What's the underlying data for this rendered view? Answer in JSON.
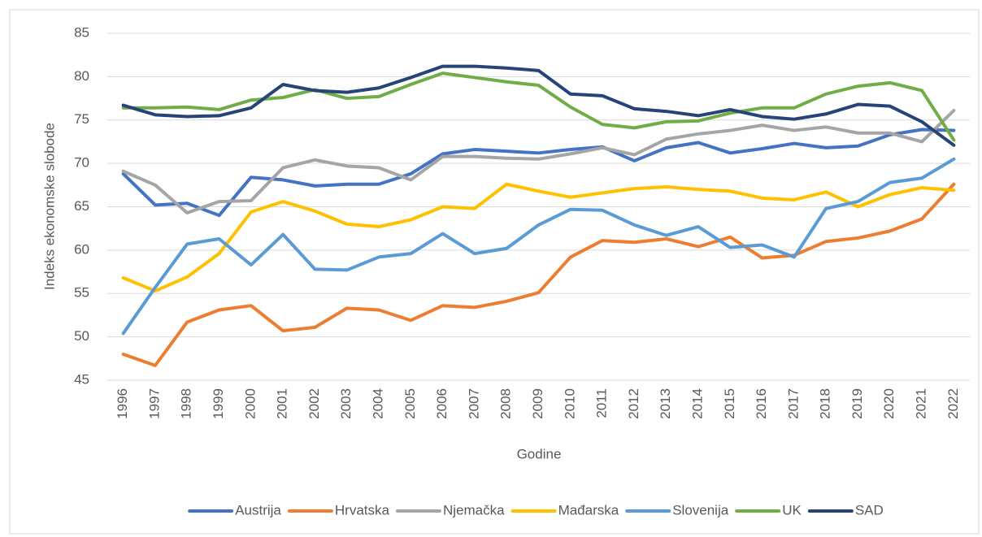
{
  "chart_data": {
    "type": "line",
    "x_label": "Godine",
    "y_label": "Indeks ekonomske slobode",
    "categories": [
      "1996",
      "1997",
      "1998",
      "1999",
      "2000",
      "2001",
      "2002",
      "2003",
      "2004",
      "2005",
      "2006",
      "2007",
      "2008",
      "2009",
      "2010",
      "2011",
      "2012",
      "2013",
      "2014",
      "2015",
      "2016",
      "2017",
      "2018",
      "2019",
      "2020",
      "2021",
      "2022"
    ],
    "ylim": [
      45,
      85
    ],
    "yticks": [
      45,
      50,
      55,
      60,
      65,
      70,
      75,
      80,
      85
    ],
    "grid": true,
    "legend": "bottom",
    "series": [
      {
        "name": "Austrija",
        "color": "#4472c4",
        "values": [
          68.8,
          65.2,
          65.4,
          64.0,
          68.4,
          68.1,
          67.4,
          67.6,
          67.6,
          68.8,
          71.1,
          71.6,
          71.4,
          71.2,
          71.6,
          71.9,
          70.3,
          71.8,
          72.4,
          71.2,
          71.7,
          72.3,
          71.8,
          72.0,
          73.3,
          73.9,
          73.8
        ]
      },
      {
        "name": "Hrvatska",
        "color": "#ed7d31",
        "values": [
          48.0,
          46.7,
          51.7,
          53.1,
          53.6,
          50.7,
          51.1,
          53.3,
          53.1,
          51.9,
          53.6,
          53.4,
          54.1,
          55.1,
          59.2,
          61.1,
          60.9,
          61.3,
          60.4,
          61.5,
          59.1,
          59.4,
          61.0,
          61.4,
          62.2,
          63.6,
          67.6
        ]
      },
      {
        "name": "Njemačka",
        "color": "#a5a5a5",
        "values": [
          69.1,
          67.5,
          64.3,
          65.6,
          65.7,
          69.5,
          70.4,
          69.7,
          69.5,
          68.1,
          70.8,
          70.8,
          70.6,
          70.5,
          71.1,
          71.8,
          71.0,
          72.8,
          73.4,
          73.8,
          74.4,
          73.8,
          74.2,
          73.5,
          73.5,
          72.5,
          76.1
        ]
      },
      {
        "name": "Mađarska",
        "color": "#ffc000",
        "values": [
          56.8,
          55.3,
          56.9,
          59.6,
          64.4,
          65.6,
          64.5,
          63.0,
          62.7,
          63.5,
          65.0,
          64.8,
          67.6,
          66.8,
          66.1,
          66.6,
          67.1,
          67.3,
          67.0,
          66.8,
          66.0,
          65.8,
          66.7,
          65.0,
          66.4,
          67.2,
          66.9
        ]
      },
      {
        "name": "Slovenija",
        "color": "#5b9bd5",
        "values": [
          50.4,
          55.7,
          60.7,
          61.3,
          58.3,
          61.8,
          57.8,
          57.7,
          59.2,
          59.6,
          61.9,
          59.6,
          60.2,
          62.9,
          64.7,
          64.6,
          62.9,
          61.7,
          62.7,
          60.3,
          60.6,
          59.2,
          64.8,
          65.6,
          67.8,
          68.3,
          70.5
        ]
      },
      {
        "name": "UK",
        "color": "#70ad47",
        "values": [
          76.4,
          76.4,
          76.5,
          76.2,
          77.3,
          77.6,
          78.5,
          77.5,
          77.7,
          79.1,
          80.4,
          79.9,
          79.4,
          79.0,
          76.5,
          74.5,
          74.1,
          74.8,
          74.9,
          75.8,
          76.4,
          76.4,
          78.0,
          78.9,
          79.3,
          78.4,
          72.7
        ]
      },
      {
        "name": "SAD",
        "color": "#264478",
        "values": [
          76.7,
          75.6,
          75.4,
          75.5,
          76.4,
          79.1,
          78.4,
          78.2,
          78.7,
          79.9,
          81.2,
          81.2,
          81.0,
          80.7,
          78.0,
          77.8,
          76.3,
          76.0,
          75.5,
          76.2,
          75.4,
          75.1,
          75.7,
          76.8,
          76.6,
          74.8,
          72.1
        ]
      }
    ]
  }
}
